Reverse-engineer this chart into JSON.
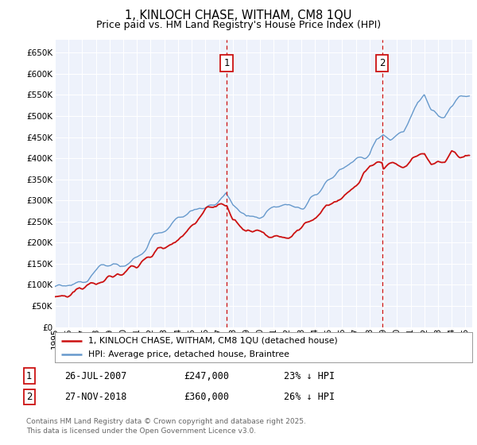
{
  "title": "1, KINLOCH CHASE, WITHAM, CM8 1QU",
  "subtitle": "Price paid vs. HM Land Registry's House Price Index (HPI)",
  "ylim": [
    0,
    680000
  ],
  "yticks": [
    0,
    50000,
    100000,
    150000,
    200000,
    250000,
    300000,
    350000,
    400000,
    450000,
    500000,
    550000,
    600000,
    650000
  ],
  "xlim_start": 1995.0,
  "xlim_end": 2025.5,
  "bg_color": "#ffffff",
  "plot_bg_color": "#eef2fb",
  "grid_color": "#ffffff",
  "hpi_color": "#6699cc",
  "price_color": "#cc1111",
  "sale1_date": 2007.57,
  "sale1_price": 247000,
  "sale1_label": "1",
  "sale2_date": 2018.91,
  "sale2_price": 360000,
  "sale2_label": "2",
  "legend_line1": "1, KINLOCH CHASE, WITHAM, CM8 1QU (detached house)",
  "legend_line2": "HPI: Average price, detached house, Braintree",
  "table_row1": [
    "1",
    "26-JUL-2007",
    "£247,000",
    "23% ↓ HPI"
  ],
  "table_row2": [
    "2",
    "27-NOV-2018",
    "£360,000",
    "26% ↓ HPI"
  ],
  "footnote": "Contains HM Land Registry data © Crown copyright and database right 2025.\nThis data is licensed under the Open Government Licence v3.0.",
  "title_fontsize": 10.5,
  "subtitle_fontsize": 9,
  "tick_fontsize": 7.5,
  "label_fontsize": 8.5,
  "footnote_fontsize": 6.5
}
